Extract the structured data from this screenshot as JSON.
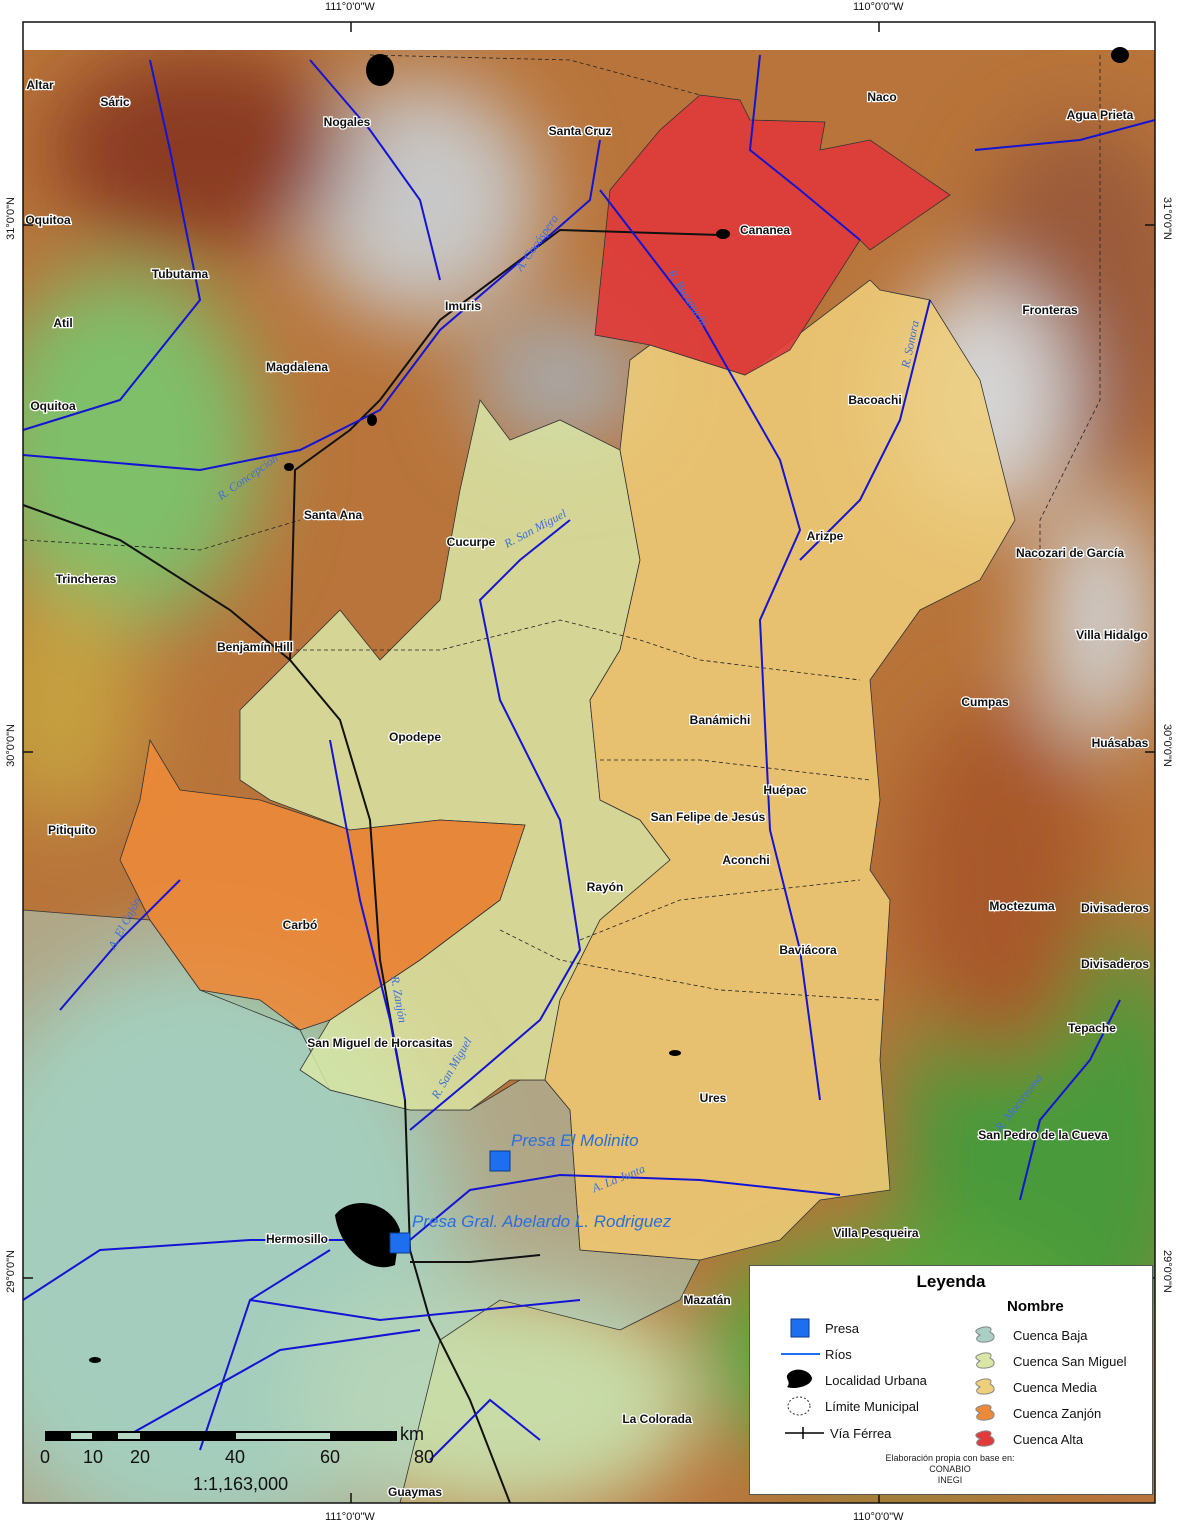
{
  "coordinates": {
    "top": [
      "111°0'0\"W",
      "110°0'0\"W"
    ],
    "bottom": [
      "111°0'0\"W",
      "110°0'0\"W"
    ],
    "left": [
      "31°0'0\"N",
      "30°0'0\"N",
      "29°0'0\"N"
    ],
    "right": [
      "31°0'0\"N",
      "30°0'0\"N",
      "29°0'0\"N"
    ]
  },
  "places": [
    "Altar",
    "Sáric",
    "Nogales",
    "Santa Cruz",
    "Naco",
    "Agua Prieta",
    "Oquitoa",
    "Cananea",
    "Tubutama",
    "Imuris",
    "Fronteras",
    "Atil",
    "Magdalena",
    "Bacoachi",
    "Oquitoa",
    "Santa Ana",
    "Cucurpe",
    "Arizpe",
    "Nacozari de García",
    "Trincheras",
    "Villa Hidalgo",
    "Benjamín Hill",
    "Cumpas",
    "Opodepe",
    "Banámichi",
    "Huásabas",
    "Huépac",
    "San Felipe de Jesús",
    "Pitiquito",
    "Aconchi",
    "Rayón",
    "Moctezuma",
    "Divisaderos",
    "Carbó",
    "Baviácora",
    "Divisaderos",
    "Tepache",
    "San Miguel de Horcasitas",
    "Ures",
    "San Pedro de la Cueva",
    "Hermosillo",
    "Villa Pesqueira",
    "Mazatán",
    "La Colorada",
    "Guaymas"
  ],
  "rivers": [
    "A. Cocóspera",
    "R. Bacanuchi",
    "R. Sonora",
    "R. Concepción",
    "R. San Miguel",
    "R. Zanjón",
    "R. San Miguel",
    "A. La Junta",
    "A. El Cajón",
    "R. Moctezuma"
  ],
  "dams": [
    "Presa El Molinito",
    "Presa Gral. Abelardo L. Rodriguez"
  ],
  "basins": [
    {
      "name": "Cuenca Baja",
      "color": "#a9cfc4"
    },
    {
      "name": "Cuenca San Miguel",
      "color": "#d9e6a6"
    },
    {
      "name": "Cuenca Media",
      "color": "#f0cf7a"
    },
    {
      "name": "Cuenca Zanjón",
      "color": "#ec8a3a"
    },
    {
      "name": "Cuenca Alta",
      "color": "#e03a3a"
    }
  ],
  "legend": {
    "title": "Leyenda",
    "basins_title": "Nombre",
    "items": [
      "Presa",
      "Ríos",
      "Localidad Urbana",
      "Límite Municipal",
      "Vía Férrea"
    ],
    "note": [
      "Elaboración propia con base en:",
      "CONABIO",
      "INEGI"
    ]
  },
  "scale": {
    "ticks": [
      "0",
      "10",
      "20",
      "40",
      "60",
      "80"
    ],
    "unit": "km",
    "ratio": "1:1,163,000"
  },
  "colors": {
    "river": "#1414d4",
    "dam": "#1e6ff0",
    "dam_label": "#2a6fdc",
    "river_label": "#3f6fd8"
  }
}
